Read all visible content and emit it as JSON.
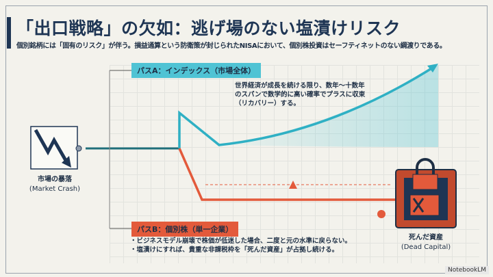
{
  "title": "「出口戦略」の欠如：逃げ場のない塩漬けリスク",
  "subtitle": "個別銘柄には「固有のリスク」が伴う。損益通算という防衛策が封じられたNISAにおいて、個別株投資はセーフティネットのない綱渡りである。",
  "path_a": {
    "label": "パスA：インデックス（市場全体）",
    "note": [
      "世界経済が成長を続ける限り、数年〜十数年",
      "のスパンで数学的に高い確率でプラスに収束",
      "（リカバリー）する。"
    ],
    "color": "#4fc3d4"
  },
  "path_b": {
    "label": "パスB：個別株（単一企業）",
    "bullets": [
      "・ビジネスモデル崩壊で株価が低迷した場合、二度と元の水準に戻らない。",
      "・塩漬けにすれば、貴重な非課税枠を「死んだ資産」が占拠し続ける。"
    ],
    "color": "#e35a3b"
  },
  "crash": {
    "label": "市場の暴落",
    "label_en": "(Market Crash)"
  },
  "dead": {
    "label": "死んだ資産",
    "label_en": "(Dead Capital)"
  },
  "watermark": "NotebookLM"
}
